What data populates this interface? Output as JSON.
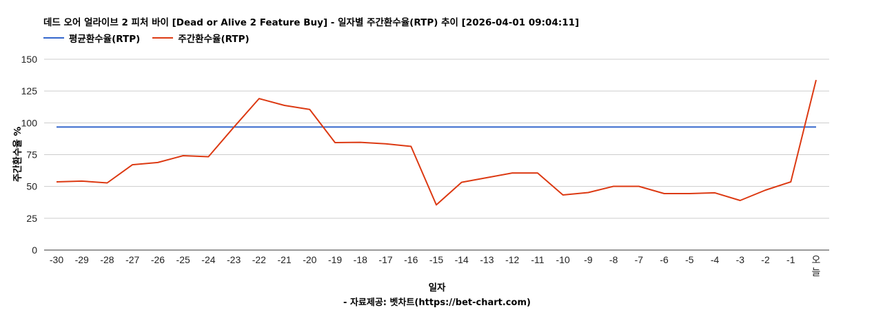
{
  "header": {
    "title": "데드 오어 얼라이브 2 피처 바이 [Dead or Alive 2 Feature Buy] - 일자별 주간환수율(RTP) 추이 [2026-04-01 09:04:11]"
  },
  "legend": {
    "items": [
      {
        "label": "평균환수율(RTP)",
        "color": "#3366cc"
      },
      {
        "label": "주간환수율(RTP)",
        "color": "#dc3912"
      }
    ]
  },
  "axes": {
    "xlabel": "일자",
    "ylabel": "주간환수율 %",
    "credit": "- 자료제공: 벳차트(https://bet-chart.com)"
  },
  "chart_data": {
    "type": "line",
    "title": "데드 오어 얼라이브 2 피처 바이 [Dead or Alive 2 Feature Buy] - 일자별 주간환수율(RTP) 추이 [2026-04-01 09:04:11]",
    "xlabel": "일자",
    "ylabel": "주간환수율 %",
    "ylim": [
      0,
      150
    ],
    "yticks": [
      0,
      25,
      50,
      75,
      100,
      125,
      150
    ],
    "grid": true,
    "legend_position": "top-left",
    "categories": [
      "-30",
      "-29",
      "-28",
      "-27",
      "-26",
      "-25",
      "-24",
      "-23",
      "-22",
      "-21",
      "-20",
      "-19",
      "-18",
      "-17",
      "-16",
      "-15",
      "-14",
      "-13",
      "-12",
      "-11",
      "-10",
      "-9",
      "-8",
      "-7",
      "-6",
      "-5",
      "-4",
      "-3",
      "-2",
      "-1",
      "오늘"
    ],
    "series": [
      {
        "name": "평균환수율(RTP)",
        "color": "#3366cc",
        "values": [
          96.7,
          96.7,
          96.7,
          96.7,
          96.7,
          96.7,
          96.7,
          96.7,
          96.7,
          96.7,
          96.7,
          96.7,
          96.7,
          96.7,
          96.7,
          96.7,
          96.7,
          96.7,
          96.7,
          96.7,
          96.7,
          96.7,
          96.7,
          96.7,
          96.7,
          96.7,
          96.7,
          96.7,
          96.7,
          96.7,
          96.7
        ]
      },
      {
        "name": "주간환수율(RTP)",
        "color": "#dc3912",
        "values": [
          53.6,
          54.2,
          52.8,
          67.1,
          68.8,
          74.2,
          73.4,
          96.5,
          119.1,
          113.7,
          110.5,
          84.5,
          84.7,
          83.5,
          81.5,
          35.5,
          53.3,
          56.9,
          60.6,
          60.6,
          43.3,
          45.2,
          50.1,
          50.1,
          44.4,
          44.4,
          45.0,
          39.0,
          47.1,
          53.6,
          133.7
        ]
      }
    ]
  }
}
